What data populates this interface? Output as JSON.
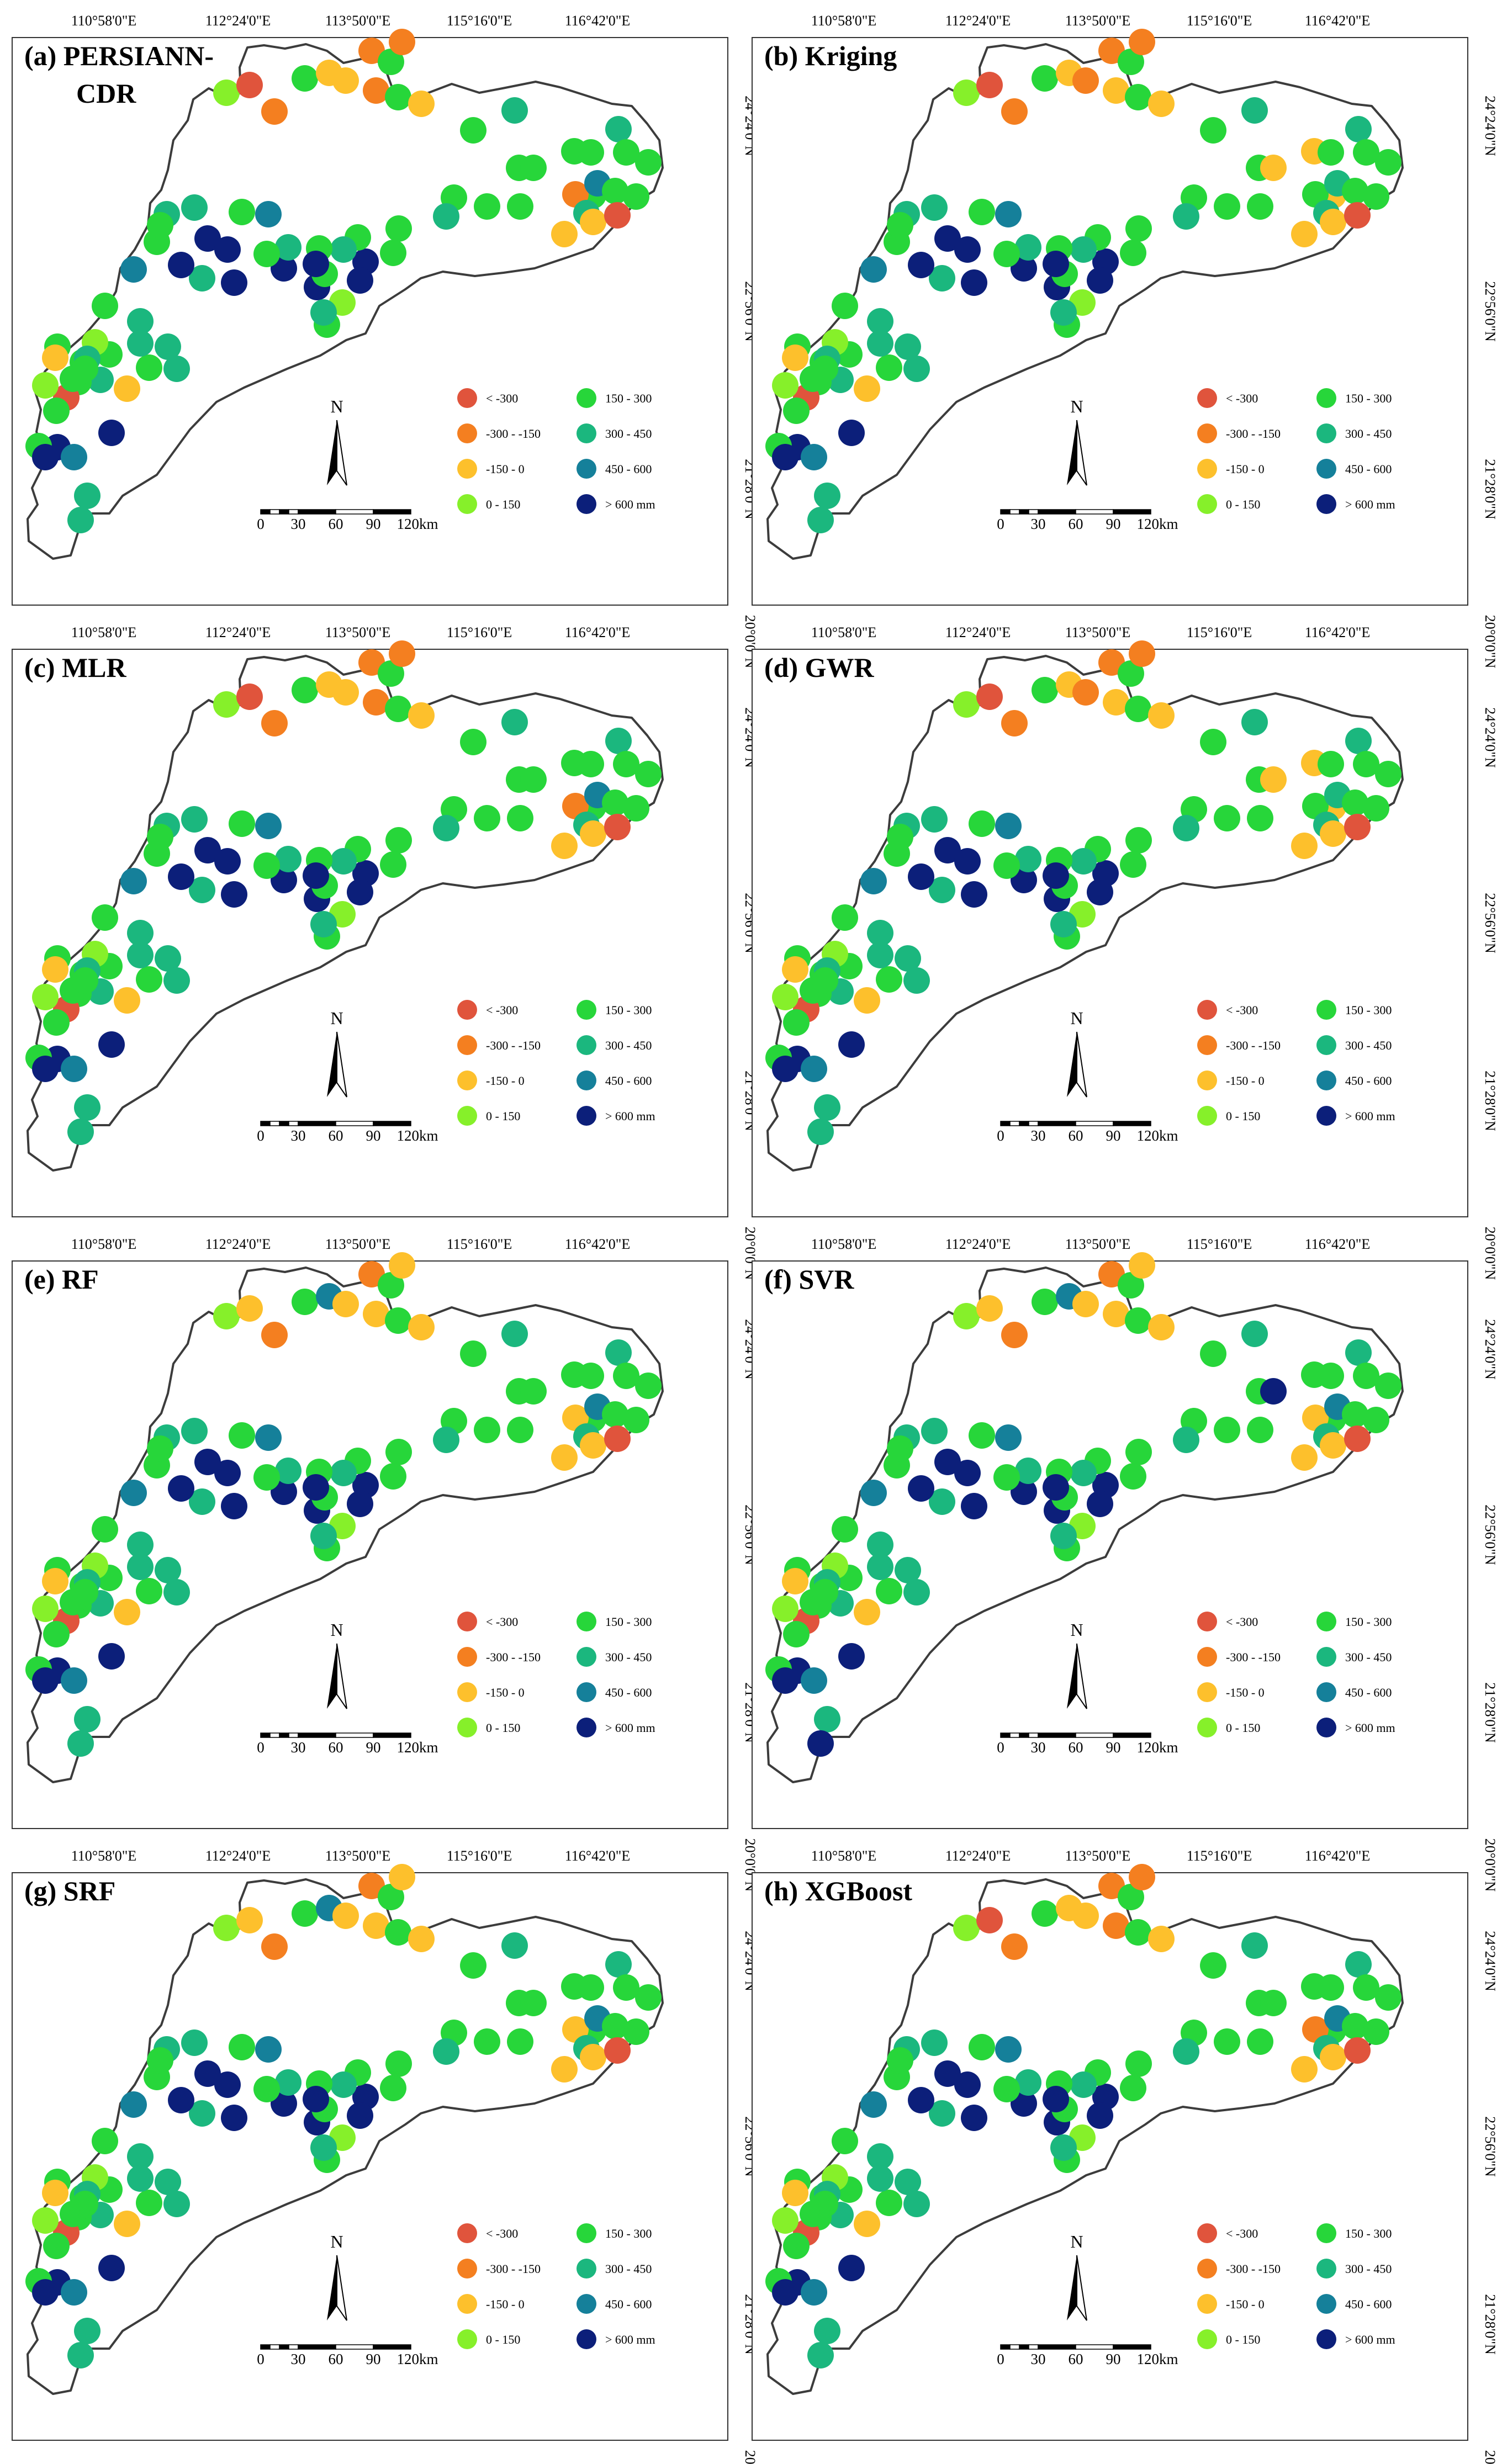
{
  "lon_labels": [
    "110°58'0\"E",
    "112°24'0\"E",
    "113°50'0\"E",
    "115°16'0\"E",
    "116°42'0\"E"
  ],
  "lat_labels": [
    "24°24'0\"N",
    "22°56'0\"N",
    "21°28'0\"N",
    "20°0'0\"N"
  ],
  "panels": [
    {
      "title_line1": "(a) PERSIANN-",
      "title_line2": "CDR",
      "classes": [
        4,
        1,
        2,
        5,
        3,
        3,
        2,
        5,
        2,
        2,
        5,
        3,
        6,
        5,
        5,
        5,
        5,
        5,
        5,
        6,
        2,
        5,
        6,
        7,
        5,
        5,
        5,
        3,
        1,
        3,
        5,
        5,
        5,
        6,
        5,
        5,
        8,
        5,
        6,
        8,
        8,
        4,
        5,
        6,
        5,
        5,
        8,
        8,
        6,
        5,
        7,
        5,
        6,
        6,
        8,
        8,
        8,
        6,
        8,
        5,
        5,
        7,
        5,
        6,
        6,
        6,
        3,
        5,
        6,
        6,
        5,
        4,
        5,
        5,
        1,
        5,
        3,
        4,
        5,
        8,
        5,
        6,
        7,
        5,
        8,
        6,
        8,
        5,
        6
      ]
    },
    {
      "title_line1": "(b) Kriging",
      "title_line2": "",
      "classes": [
        4,
        1,
        2,
        5,
        3,
        2,
        2,
        5,
        2,
        3,
        5,
        3,
        6,
        5,
        5,
        3,
        3,
        5,
        3,
        6,
        5,
        5,
        6,
        6,
        5,
        5,
        5,
        3,
        1,
        3,
        5,
        5,
        5,
        6,
        5,
        5,
        8,
        5,
        6,
        8,
        8,
        4,
        5,
        6,
        5,
        5,
        8,
        8,
        6,
        5,
        7,
        5,
        6,
        6,
        8,
        8,
        8,
        6,
        8,
        5,
        5,
        7,
        5,
        6,
        6,
        6,
        3,
        5,
        6,
        6,
        5,
        4,
        5,
        5,
        1,
        5,
        3,
        4,
        5,
        8,
        5,
        6,
        7,
        5,
        8,
        6,
        8,
        5,
        6
      ]
    },
    {
      "title_line1": "(c) MLR",
      "title_line2": "",
      "classes": [
        4,
        1,
        2,
        5,
        3,
        3,
        2,
        5,
        2,
        2,
        5,
        3,
        6,
        5,
        5,
        5,
        5,
        5,
        5,
        6,
        2,
        5,
        6,
        7,
        5,
        5,
        5,
        3,
        1,
        3,
        5,
        5,
        5,
        6,
        5,
        5,
        8,
        5,
        6,
        8,
        8,
        4,
        5,
        6,
        5,
        5,
        8,
        8,
        6,
        5,
        7,
        5,
        6,
        6,
        8,
        8,
        8,
        6,
        8,
        5,
        5,
        7,
        5,
        6,
        6,
        6,
        3,
        5,
        6,
        6,
        5,
        4,
        5,
        5,
        1,
        5,
        3,
        4,
        5,
        8,
        5,
        6,
        7,
        5,
        8,
        6,
        8,
        5,
        6
      ]
    },
    {
      "title_line1": "(d) GWR",
      "title_line2": "",
      "classes": [
        4,
        1,
        2,
        5,
        3,
        2,
        2,
        5,
        2,
        3,
        5,
        3,
        6,
        5,
        5,
        3,
        3,
        5,
        3,
        6,
        5,
        5,
        6,
        6,
        5,
        5,
        5,
        3,
        1,
        3,
        5,
        5,
        5,
        6,
        5,
        5,
        8,
        5,
        6,
        8,
        8,
        4,
        5,
        6,
        5,
        5,
        8,
        8,
        6,
        5,
        7,
        5,
        6,
        6,
        8,
        8,
        8,
        6,
        8,
        5,
        5,
        7,
        5,
        6,
        6,
        6,
        3,
        5,
        6,
        6,
        5,
        4,
        5,
        5,
        1,
        5,
        3,
        4,
        5,
        8,
        5,
        6,
        7,
        5,
        8,
        6,
        8,
        5,
        6
      ]
    },
    {
      "title_line1": "(e) RF",
      "title_line2": "",
      "classes": [
        4,
        3,
        2,
        5,
        7,
        3,
        2,
        5,
        3,
        3,
        5,
        3,
        6,
        5,
        5,
        5,
        5,
        5,
        5,
        6,
        3,
        5,
        6,
        7,
        5,
        5,
        5,
        3,
        1,
        3,
        5,
        5,
        5,
        6,
        5,
        5,
        8,
        5,
        6,
        8,
        8,
        4,
        5,
        6,
        5,
        5,
        8,
        8,
        6,
        5,
        7,
        5,
        6,
        6,
        8,
        8,
        8,
        6,
        8,
        5,
        5,
        7,
        5,
        6,
        6,
        6,
        3,
        5,
        6,
        6,
        5,
        4,
        5,
        5,
        1,
        5,
        3,
        4,
        5,
        8,
        5,
        6,
        7,
        5,
        8,
        6,
        8,
        5,
        6
      ]
    },
    {
      "title_line1": "(f) SVR",
      "title_line2": "",
      "classes": [
        4,
        3,
        2,
        5,
        7,
        3,
        2,
        5,
        3,
        3,
        5,
        3,
        6,
        5,
        5,
        8,
        5,
        5,
        5,
        6,
        3,
        5,
        6,
        7,
        5,
        5,
        5,
        3,
        1,
        3,
        5,
        5,
        5,
        6,
        5,
        5,
        8,
        5,
        6,
        8,
        8,
        4,
        5,
        6,
        5,
        5,
        8,
        8,
        6,
        5,
        7,
        5,
        6,
        6,
        8,
        8,
        8,
        6,
        8,
        5,
        5,
        7,
        5,
        6,
        6,
        6,
        3,
        5,
        6,
        6,
        5,
        4,
        5,
        5,
        1,
        5,
        3,
        4,
        5,
        8,
        5,
        6,
        7,
        5,
        8,
        6,
        8,
        5,
        8
      ]
    },
    {
      "title_line1": "(g) SRF",
      "title_line2": "",
      "classes": [
        4,
        3,
        2,
        5,
        7,
        3,
        2,
        5,
        3,
        3,
        5,
        3,
        6,
        5,
        5,
        5,
        5,
        5,
        5,
        6,
        3,
        5,
        6,
        7,
        5,
        5,
        5,
        3,
        1,
        3,
        5,
        5,
        5,
        6,
        5,
        5,
        8,
        5,
        6,
        8,
        8,
        4,
        5,
        6,
        5,
        5,
        8,
        8,
        6,
        5,
        7,
        5,
        6,
        6,
        8,
        8,
        8,
        6,
        8,
        5,
        5,
        7,
        5,
        6,
        6,
        6,
        3,
        5,
        6,
        6,
        5,
        4,
        5,
        5,
        1,
        5,
        3,
        4,
        5,
        8,
        5,
        6,
        7,
        5,
        8,
        6,
        8,
        5,
        6
      ]
    },
    {
      "title_line1": "(h) XGBoost",
      "title_line2": "",
      "classes": [
        4,
        1,
        2,
        5,
        3,
        3,
        2,
        5,
        2,
        2,
        5,
        3,
        6,
        5,
        5,
        5,
        5,
        5,
        5,
        6,
        2,
        5,
        6,
        7,
        5,
        5,
        5,
        3,
        1,
        3,
        5,
        5,
        5,
        6,
        5,
        5,
        8,
        5,
        6,
        8,
        8,
        4,
        5,
        6,
        5,
        5,
        8,
        8,
        6,
        5,
        7,
        5,
        6,
        6,
        8,
        8,
        8,
        6,
        8,
        5,
        5,
        7,
        5,
        6,
        6,
        6,
        3,
        5,
        6,
        6,
        5,
        4,
        5,
        5,
        1,
        5,
        3,
        4,
        5,
        8,
        5,
        6,
        7,
        5,
        8,
        6,
        8,
        5,
        6
      ]
    }
  ],
  "legend": [
    {
      "label": "< -300",
      "color": "#e0543c"
    },
    {
      "label": "-300 - -150",
      "color": "#f47f20"
    },
    {
      "label": "-150 - 0",
      "color": "#fdc02c"
    },
    {
      "label": "0 - 150",
      "color": "#86f02a"
    },
    {
      "label": "150 - 300",
      "color": "#27d63a"
    },
    {
      "label": "300 - 450",
      "color": "#1bb77e"
    },
    {
      "label": "450 - 600",
      "color": "#15809a"
    },
    {
      "label": "> 600 mm",
      "color": "#0c1f7a"
    }
  ],
  "north_label": "N",
  "scale_labels": [
    "0",
    "30",
    "60",
    "90",
    "120km"
  ]
}
